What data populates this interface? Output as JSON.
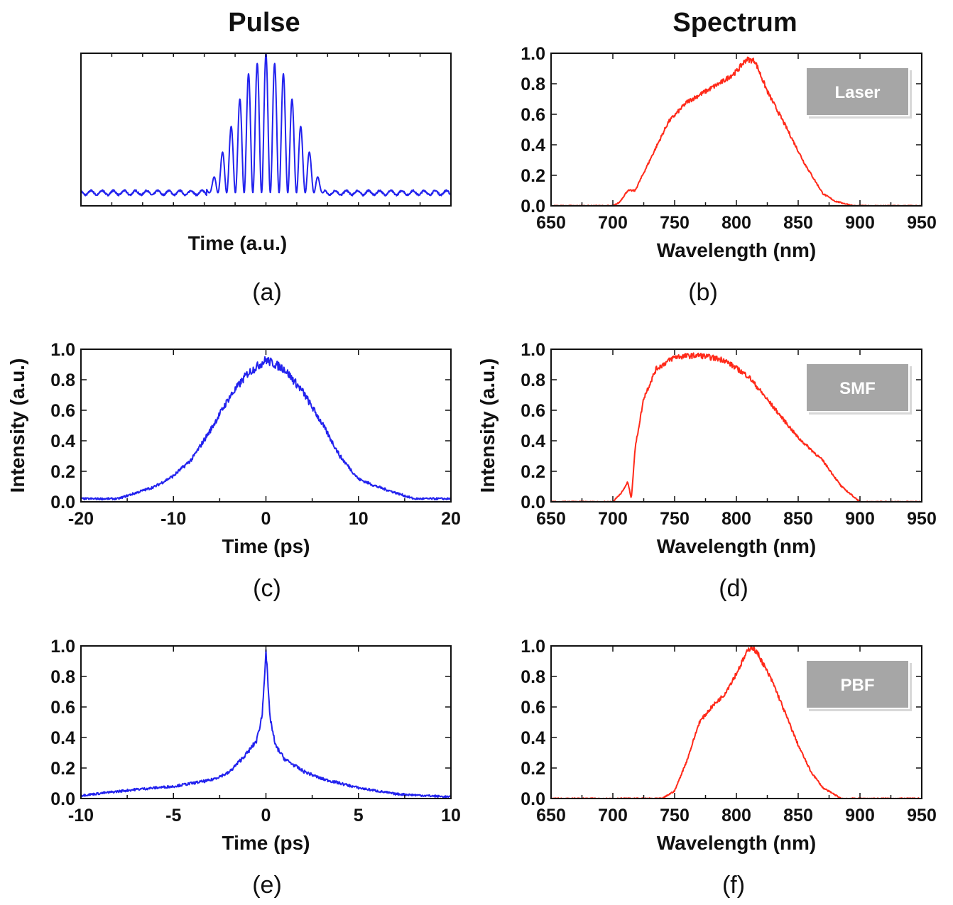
{
  "column_titles": {
    "left": "Pulse",
    "right": "Spectrum"
  },
  "colors": {
    "pulse": "#2222ee",
    "spectrum": "#ff2a1a",
    "legend_fill": "#a6a6a6"
  },
  "chart_data": [
    {
      "id": "a",
      "panel_label": "(a)",
      "type": "line",
      "color": "#2222ee",
      "xlabel": "Time (a.u.)",
      "ylabel": "",
      "xlim": [
        -1,
        1
      ],
      "ylim": [
        -0.05,
        1.0
      ],
      "xticks": [],
      "yticks": [],
      "show_tick_labels": false,
      "legend": "",
      "series": [
        {
          "x": [
            -1.0,
            -0.3,
            -0.2,
            -0.1,
            0.0,
            0.1,
            0.2,
            0.3,
            1.0
          ],
          "y": [
            0.04,
            0.08,
            0.45,
            0.85,
            1.0,
            0.85,
            0.45,
            0.08,
            0.04
          ]
        }
      ]
    },
    {
      "id": "b",
      "panel_label": "(b)",
      "type": "line",
      "color": "#ff2a1a",
      "xlabel": "Wavelength (nm)",
      "ylabel": "",
      "xlim": [
        650,
        950
      ],
      "ylim": [
        0,
        1.0
      ],
      "xticks": [
        "650",
        "700",
        "750",
        "800",
        "850",
        "900",
        "950"
      ],
      "yticks": [
        "0.0",
        "0.2",
        "0.4",
        "0.6",
        "0.8",
        "1.0"
      ],
      "show_tick_labels": true,
      "legend": "Laser",
      "legend_position": "top-right",
      "series": [
        {
          "x": [
            650,
            700,
            705,
            712,
            718,
            730,
            745,
            760,
            775,
            790,
            800,
            808,
            815,
            825,
            840,
            855,
            870,
            880,
            895,
            950
          ],
          "y": [
            0.0,
            0.0,
            0.02,
            0.1,
            0.1,
            0.3,
            0.55,
            0.68,
            0.75,
            0.82,
            0.88,
            0.96,
            0.95,
            0.75,
            0.52,
            0.28,
            0.08,
            0.03,
            0.0,
            0.0
          ]
        }
      ]
    },
    {
      "id": "c",
      "panel_label": "(c)",
      "type": "line",
      "color": "#2222ee",
      "xlabel": "Time (ps)",
      "ylabel": "Intensity (a.u.)",
      "xlim": [
        -20,
        20
      ],
      "ylim": [
        0,
        1.0
      ],
      "xticks": [
        "-20",
        "-10",
        "0",
        "10",
        "20"
      ],
      "yticks": [
        "0.0",
        "0.2",
        "0.4",
        "0.6",
        "0.8",
        "1.0"
      ],
      "show_tick_labels": true,
      "legend": "",
      "series": [
        {
          "x": [
            -20,
            -16,
            -12,
            -10,
            -8,
            -6,
            -4,
            -2,
            0,
            2,
            4,
            6,
            8,
            10,
            12,
            16,
            20
          ],
          "y": [
            0.02,
            0.02,
            0.1,
            0.17,
            0.28,
            0.47,
            0.68,
            0.84,
            0.93,
            0.87,
            0.72,
            0.52,
            0.3,
            0.15,
            0.1,
            0.02,
            0.02
          ]
        }
      ]
    },
    {
      "id": "d",
      "panel_label": "(d)",
      "type": "line",
      "color": "#ff2a1a",
      "xlabel": "Wavelength (nm)",
      "ylabel": "Intensity (a.u.)",
      "xlim": [
        650,
        950
      ],
      "ylim": [
        0,
        1.0
      ],
      "xticks": [
        "650",
        "700",
        "750",
        "800",
        "850",
        "900",
        "950"
      ],
      "yticks": [
        "0.0",
        "0.2",
        "0.4",
        "0.6",
        "0.8",
        "1.0"
      ],
      "show_tick_labels": true,
      "legend": "SMF",
      "legend_position": "top-right",
      "series": [
        {
          "x": [
            650,
            700,
            708,
            712,
            715,
            718,
            725,
            735,
            750,
            770,
            790,
            810,
            830,
            850,
            870,
            885,
            900,
            950
          ],
          "y": [
            0.0,
            0.0,
            0.07,
            0.13,
            0.02,
            0.35,
            0.68,
            0.87,
            0.95,
            0.96,
            0.93,
            0.82,
            0.62,
            0.42,
            0.27,
            0.1,
            0.0,
            0.0
          ]
        }
      ]
    },
    {
      "id": "e",
      "panel_label": "(e)",
      "type": "line",
      "color": "#2222ee",
      "xlabel": "Time (ps)",
      "ylabel": "",
      "xlim": [
        -10,
        10
      ],
      "ylim": [
        0,
        1.0
      ],
      "xticks": [
        "-10",
        "-5",
        "0",
        "5",
        "10"
      ],
      "yticks": [
        "0.0",
        "0.2",
        "0.4",
        "0.6",
        "0.8",
        "1.0"
      ],
      "show_tick_labels": true,
      "legend": "",
      "series": [
        {
          "x": [
            -10,
            -7,
            -5,
            -3,
            -2,
            -1,
            -0.5,
            -0.2,
            0,
            0.2,
            0.5,
            1,
            2,
            3,
            5,
            7,
            10
          ],
          "y": [
            0.02,
            0.06,
            0.08,
            0.12,
            0.17,
            0.3,
            0.38,
            0.55,
            0.98,
            0.55,
            0.35,
            0.26,
            0.18,
            0.13,
            0.07,
            0.03,
            0.01
          ]
        }
      ]
    },
    {
      "id": "f",
      "panel_label": "(f)",
      "type": "line",
      "color": "#ff2a1a",
      "xlabel": "Wavelength (nm)",
      "ylabel": "",
      "xlim": [
        650,
        950
      ],
      "ylim": [
        0,
        1.0
      ],
      "xticks": [
        "650",
        "700",
        "750",
        "800",
        "850",
        "900",
        "950"
      ],
      "yticks": [
        "0.0",
        "0.2",
        "0.4",
        "0.6",
        "0.8",
        "1.0"
      ],
      "show_tick_labels": true,
      "legend": "PBF",
      "legend_position": "top-right",
      "series": [
        {
          "x": [
            650,
            740,
            750,
            760,
            770,
            780,
            790,
            800,
            808,
            812,
            818,
            830,
            840,
            850,
            860,
            870,
            885,
            950
          ],
          "y": [
            0.0,
            0.0,
            0.05,
            0.25,
            0.5,
            0.6,
            0.68,
            0.82,
            0.95,
            1.0,
            0.94,
            0.75,
            0.55,
            0.35,
            0.18,
            0.07,
            0.0,
            0.0
          ]
        }
      ]
    }
  ]
}
